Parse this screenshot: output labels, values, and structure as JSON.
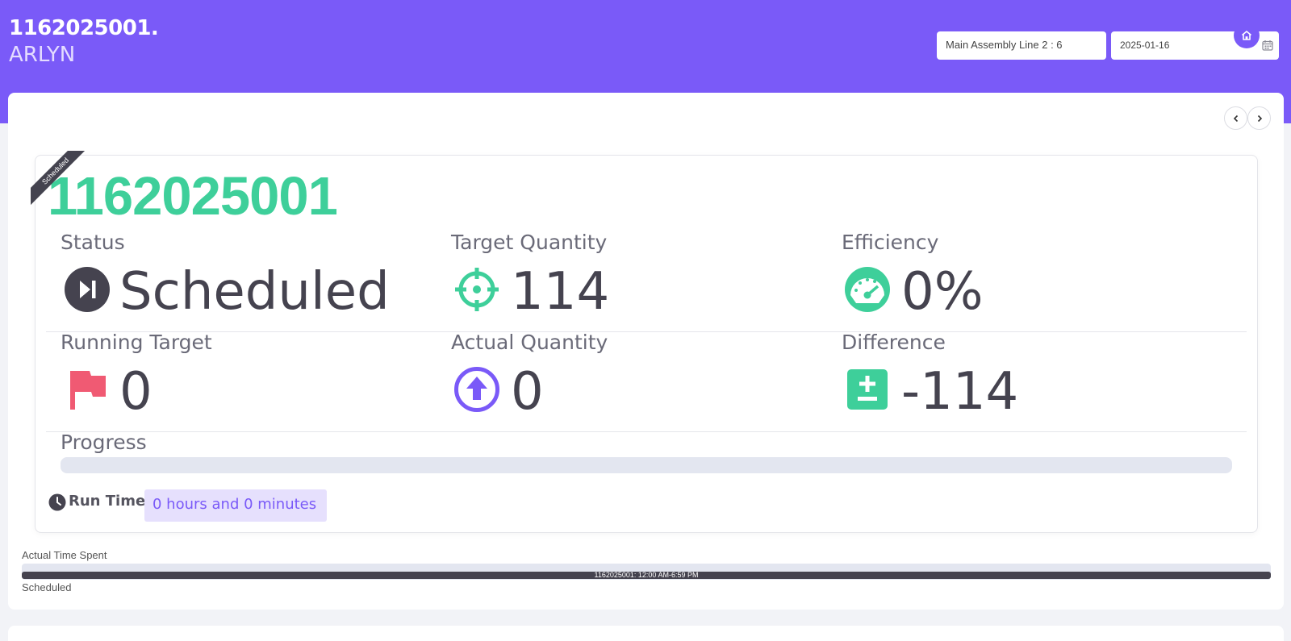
{
  "header": {
    "title": "1162025001.",
    "subtitle": "ARLYN",
    "line_select": "Main Assembly Line 2 : 6",
    "date": "2025-01-16"
  },
  "order": {
    "ribbon": "Scheduled",
    "number": "1162025001"
  },
  "metrics": {
    "status_label": "Status",
    "status_value": "Scheduled",
    "target_label": "Target Quantity",
    "target_value": "114",
    "efficiency_label": "Efficiency",
    "efficiency_value": "0%",
    "running_label": "Running Target",
    "running_value": "0",
    "actual_label": "Actual Quantity",
    "actual_value": "0",
    "difference_label": "Difference",
    "difference_value": "-114"
  },
  "progress": {
    "label": "Progress",
    "fraction": 0
  },
  "runtime": {
    "label": "Run Time:",
    "value": "0 hours and 0 minutes"
  },
  "timeline": {
    "label": "Actual Time Spent",
    "bar_text": "1162025001: 12:00 AM-6:59 PM",
    "legend": "Scheduled"
  },
  "colors": {
    "accent": "#7a5af8",
    "green": "#3ecf9a",
    "red": "#f05a73",
    "dark": "#45434f"
  },
  "icons": {
    "status": "play-next-icon",
    "target": "crosshair-icon",
    "efficiency": "speedometer-icon",
    "running": "flag-icon",
    "actual": "arrow-up-circle-icon",
    "difference": "plus-minus-icon",
    "runtime": "clock-icon"
  }
}
